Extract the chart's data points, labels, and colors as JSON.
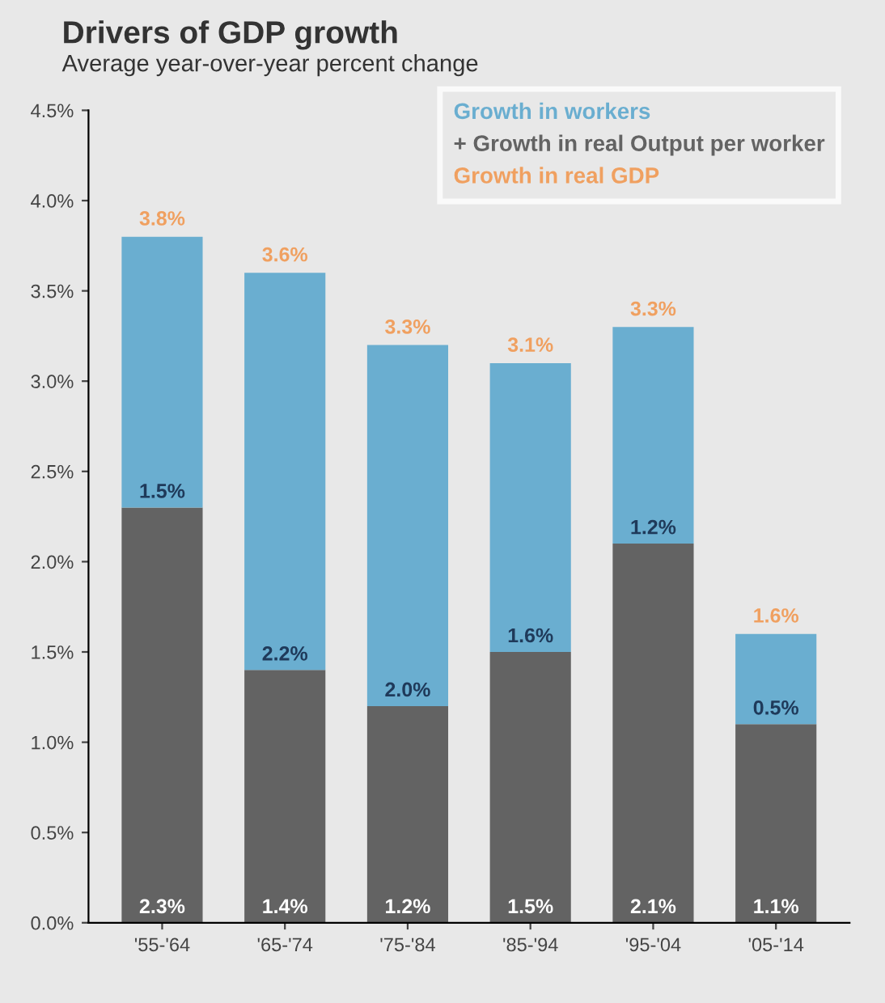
{
  "chart_data": {
    "type": "bar",
    "title": "Drivers of GDP growth",
    "subtitle": "Average year-over-year percent change",
    "categories": [
      "'55-'64",
      "'65-'74",
      "'75-'84",
      "'85-'94",
      "'95-'04",
      "'05-'14"
    ],
    "stacked": true,
    "series": [
      {
        "name": "+ Growth in real Output per worker",
        "color": "#636363",
        "values": [
          2.3,
          1.4,
          1.2,
          1.5,
          2.1,
          1.1
        ],
        "value_labels": [
          "2.3%",
          "1.4%",
          "1.2%",
          "1.5%",
          "2.1%",
          "1.1%"
        ]
      },
      {
        "name": "Growth in workers",
        "color": "#6aaed0",
        "values": [
          1.5,
          2.2,
          2.0,
          1.6,
          1.2,
          0.5
        ],
        "value_labels": [
          "1.5%",
          "2.2%",
          "2.0%",
          "1.6%",
          "1.2%",
          "0.5%"
        ]
      }
    ],
    "totals": [
      "3.8%",
      "3.6%",
      "3.3%",
      "3.1%",
      "3.3%",
      "1.6%"
    ],
    "annotations": [
      "Growth in real GDP"
    ],
    "ylim": [
      0,
      4.5
    ],
    "yticks": [
      {
        "value": 0,
        "label": "0.0%"
      },
      {
        "value": 0.5,
        "label": "0.5%"
      },
      {
        "value": 1,
        "label": "1.0%"
      },
      {
        "value": 1.5,
        "label": "1.5%"
      },
      {
        "value": 2,
        "label": "2.0%"
      },
      {
        "value": 2.5,
        "label": "2.5%"
      },
      {
        "value": 3,
        "label": "3.0%"
      },
      {
        "value": 3.5,
        "label": "3.5%"
      },
      {
        "value": 4,
        "label": "4.0%"
      },
      {
        "value": 4.5,
        "label": "4.5%"
      }
    ],
    "grid": false,
    "legend": "top right"
  }
}
